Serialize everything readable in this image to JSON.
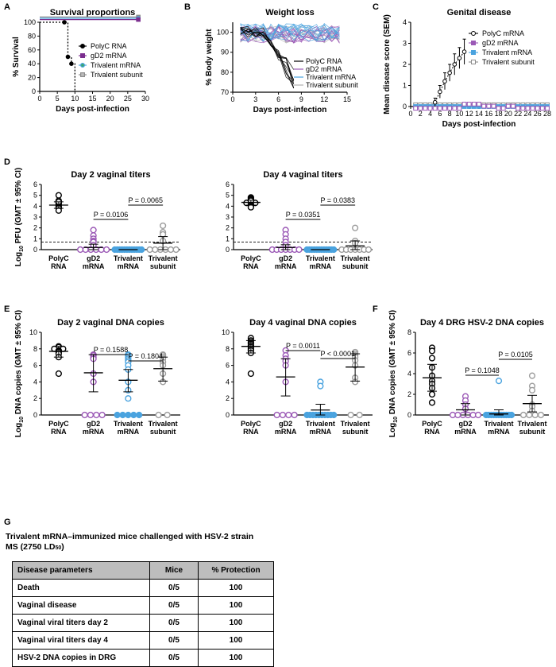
{
  "panel_labels": [
    "A",
    "B",
    "C",
    "D",
    "E",
    "F",
    "G"
  ],
  "chart_data": [
    {
      "id": "A",
      "type": "line",
      "title": "Survival proportions",
      "xlabel": "Days post-infection",
      "ylabel": "% Survival",
      "xlim": [
        0,
        30
      ],
      "ylim": [
        0,
        100
      ],
      "xticks": [
        0,
        5,
        10,
        15,
        20,
        25,
        30
      ],
      "yticks": [
        0,
        20,
        40,
        60,
        80,
        100
      ],
      "series": [
        {
          "name": "PolyC RNA",
          "color": "#000000",
          "marker": "circle",
          "x": [
            0,
            7,
            8,
            9,
            10
          ],
          "y": [
            100,
            100,
            50,
            40,
            0
          ]
        },
        {
          "name": "gD2 mRNA",
          "color": "#7b2d8e",
          "marker": "square",
          "x": [
            0,
            28
          ],
          "y": [
            100,
            100
          ]
        },
        {
          "name": "Trivalent mRNA",
          "color": "#4aa3df",
          "marker": "circle",
          "x": [
            0,
            28
          ],
          "y": [
            100,
            100
          ]
        },
        {
          "name": "Trivalent subunit",
          "color": "#8c8c8c",
          "marker": "square",
          "x": [
            0,
            28
          ],
          "y": [
            100,
            100
          ]
        }
      ]
    },
    {
      "id": "B",
      "type": "line",
      "title": "Weight loss",
      "xlabel": "Days post-infection",
      "ylabel": "% Body weight",
      "xlim": [
        0,
        15
      ],
      "ylim": [
        70,
        105
      ],
      "xticks": [
        0,
        3,
        6,
        9,
        12,
        15
      ],
      "yticks": [
        70,
        80,
        90,
        100
      ],
      "series": [
        {
          "name": "PolyC RNA",
          "color": "#000000"
        },
        {
          "name": "gD2 mRNA",
          "color": "#9b59b6"
        },
        {
          "name": "Trivalent mRNA",
          "color": "#4aa3df"
        },
        {
          "name": "Trivalent subunit",
          "color": "#b0b0b0"
        }
      ]
    },
    {
      "id": "C",
      "type": "line",
      "title": "Genital disease",
      "xlabel": "Days post-infection",
      "ylabel": "Mean disease score (SEM)",
      "xlim": [
        0,
        28
      ],
      "ylim": [
        0,
        4
      ],
      "xticks": [
        0,
        2,
        4,
        6,
        8,
        10,
        12,
        14,
        16,
        18,
        20,
        22,
        24,
        26,
        28
      ],
      "yticks": [
        0,
        1,
        2,
        3,
        4
      ],
      "series": [
        {
          "name": "PolyC mRNA",
          "color": "#000000",
          "x": [
            5,
            6,
            7,
            8,
            9,
            10,
            11
          ],
          "y": [
            0.2,
            0.7,
            1.2,
            1.6,
            2.0,
            2.3,
            2.6
          ],
          "err": [
            0.2,
            0.3,
            0.4,
            0.4,
            0.5,
            0.5,
            0.6
          ]
        },
        {
          "name": "gD2 mRNA",
          "color": "#9b59b6",
          "x": [
            1,
            2,
            3,
            4,
            5,
            6,
            7,
            8,
            9,
            10,
            11,
            12,
            13,
            14,
            15,
            16,
            17,
            18,
            19,
            20,
            21,
            22,
            23,
            24,
            25,
            26,
            27,
            28
          ],
          "y": [
            0,
            0,
            0,
            0,
            0,
            0,
            0,
            0,
            0,
            0,
            0.2,
            0.2,
            0.2,
            0.2,
            0.1,
            0.1,
            0.1,
            0,
            0,
            0.1,
            0.1,
            0,
            0,
            0,
            0,
            0,
            0,
            0
          ]
        },
        {
          "name": "Trivalent mRNA",
          "color": "#4aa3df",
          "x": [
            1,
            2,
            3,
            4,
            5,
            6,
            7,
            8,
            9,
            10,
            11,
            12,
            13,
            14,
            15,
            16,
            17,
            18,
            19,
            20,
            21,
            22,
            23,
            24,
            25,
            26,
            27,
            28
          ],
          "y": [
            0,
            0,
            0,
            0,
            0,
            0,
            0,
            0,
            0,
            0,
            0,
            0,
            0,
            0,
            0,
            0,
            0,
            0,
            0,
            0,
            0,
            0,
            0,
            0,
            0,
            0,
            0,
            0
          ]
        },
        {
          "name": "Trivalent subunit",
          "color": "#8c8c8c",
          "x": [
            1,
            2,
            3,
            4,
            5,
            6,
            7,
            8,
            9,
            10,
            11,
            12,
            13,
            14,
            15,
            16,
            17,
            18,
            19,
            20,
            21,
            22,
            23,
            24,
            25,
            26,
            27,
            28
          ],
          "y": [
            0,
            0,
            0,
            0,
            0,
            0,
            0,
            0,
            0,
            0,
            0,
            0,
            0,
            0,
            0,
            0,
            0,
            0,
            0,
            0,
            0,
            0,
            0,
            0,
            0,
            0,
            0,
            0
          ]
        }
      ]
    },
    {
      "id": "D1",
      "type": "scatter",
      "title": "Day 2 vaginal titers",
      "ylabel_main": "Log",
      "ylabel_sub": "10",
      "ylabel_rest": " PFU (GMT ± 95% CI)",
      "ylim": [
        0,
        6
      ],
      "yticks": [
        0,
        1,
        2,
        3,
        4,
        5,
        6
      ],
      "detection_limit": 0.7,
      "categories": [
        "PolyC RNA",
        "gD2 mRNA",
        "Trivalent mRNA",
        "Trivalent subunit"
      ],
      "cat_lines": [
        [
          "PolyC",
          "RNA"
        ],
        [
          "gD2",
          "mRNA"
        ],
        [
          "Trivalent",
          "mRNA"
        ],
        [
          "Trivalent",
          "subunit"
        ]
      ],
      "colors": [
        "#000000",
        "#9b59b6",
        "#4aa3df",
        "#9c9c9c"
      ],
      "points": [
        [
          5.0,
          4.5,
          4.3,
          4.2,
          4.1,
          4.0,
          3.9,
          3.8,
          3.6,
          4.4
        ],
        [
          1.8,
          1.3,
          1.0,
          0.8,
          0.7,
          0.4,
          0,
          0,
          0,
          0,
          0,
          0
        ],
        [
          0,
          0,
          0,
          0,
          0,
          0,
          0,
          0,
          0,
          0,
          0,
          0
        ],
        [
          2.2,
          1.6,
          1.4,
          0.8,
          0,
          0,
          0,
          0,
          0,
          0
        ]
      ],
      "means": [
        4.1,
        0.2,
        0.0,
        0.6
      ],
      "ci": [
        [
          3.8,
          4.4
        ],
        [
          0,
          0.5
        ],
        [
          0,
          0
        ],
        [
          0,
          1.2
        ]
      ],
      "brackets": [
        {
          "from": 1,
          "to": 2,
          "text": "P = 0.0106"
        },
        {
          "from": 2,
          "to": 3,
          "text": "P = 0.0065"
        }
      ]
    },
    {
      "id": "D2",
      "type": "scatter",
      "title": "Day 4 vaginal titers",
      "ylim": [
        0,
        6
      ],
      "yticks": [
        0,
        1,
        2,
        3,
        4,
        5,
        6
      ],
      "detection_limit": 0.7,
      "categories": [
        "PolyC RNA",
        "gD2 mRNA",
        "Trivalent mRNA",
        "Trivalent subunit"
      ],
      "cat_lines": [
        [
          "PolyC",
          "RNA"
        ],
        [
          "gD2",
          "mRNA"
        ],
        [
          "Trivalent",
          "mRNA"
        ],
        [
          "Trivalent",
          "subunit"
        ]
      ],
      "colors": [
        "#000000",
        "#9b59b6",
        "#4aa3df",
        "#9c9c9c"
      ],
      "points": [
        [
          4.8,
          4.7,
          4.6,
          4.4,
          4.3,
          4.3,
          4.2,
          4.0,
          3.9,
          4.5
        ],
        [
          1.8,
          1.4,
          1.0,
          0.7,
          0.4,
          0,
          0,
          0,
          0,
          0,
          0,
          0
        ],
        [
          0,
          0,
          0,
          0,
          0,
          0,
          0,
          0,
          0,
          0,
          0,
          0
        ],
        [
          2.0,
          0.8,
          0.6,
          0,
          0,
          0,
          0,
          0,
          0,
          0
        ]
      ],
      "means": [
        4.35,
        0.2,
        0.0,
        0.35
      ],
      "ci": [
        [
          4.1,
          4.55
        ],
        [
          0,
          0.45
        ],
        [
          0,
          0
        ],
        [
          0,
          0.8
        ]
      ],
      "brackets": [
        {
          "from": 1,
          "to": 2,
          "text": "P = 0.0351"
        },
        {
          "from": 2,
          "to": 3,
          "text": "P = 0.0383"
        }
      ]
    },
    {
      "id": "E1",
      "type": "scatter",
      "title": "Day 2 vaginal DNA copies",
      "ylabel_main": "Log",
      "ylabel_sub": "10",
      "ylabel_rest": " DNA copies (GMT ± 95% CI)",
      "ylim": [
        0,
        10
      ],
      "yticks": [
        0,
        2,
        4,
        6,
        8,
        10
      ],
      "categories": [
        "PolyC RNA",
        "gD2 mRNA",
        "Trivalent mRNA",
        "Trivalent subunit"
      ],
      "cat_lines": [
        [
          "PolyC",
          "RNA"
        ],
        [
          "gD2",
          "mRNA"
        ],
        [
          "Trivalent",
          "mRNA"
        ],
        [
          "Trivalent",
          "subunit"
        ]
      ],
      "colors": [
        "#000000",
        "#9b59b6",
        "#4aa3df",
        "#9c9c9c"
      ],
      "points": [
        [
          8.3,
          8.2,
          8.0,
          8.0,
          7.8,
          7.7,
          7.6,
          7.4,
          7.0,
          5.0
        ],
        [
          7.3,
          7.2,
          7.0,
          6.8,
          5.0,
          4.0,
          0,
          0,
          0,
          0
        ],
        [
          7.3,
          7.2,
          7.0,
          6.8,
          6.6,
          6.4,
          6.0,
          5.5,
          4.0,
          3.0,
          2.0,
          0,
          0,
          0,
          0,
          0
        ],
        [
          7.3,
          7.2,
          7.0,
          6.8,
          6.4,
          6.0,
          5.0,
          4.0,
          0,
          0
        ]
      ],
      "means": [
        7.7,
        5.1,
        4.2,
        5.6
      ],
      "ci": [
        [
          7.0,
          8.3
        ],
        [
          2.8,
          7.3
        ],
        [
          2.8,
          5.5
        ],
        [
          4.1,
          7.0
        ]
      ],
      "brackets": [
        {
          "from": 1,
          "to": 2,
          "text": "P = 0.1588"
        },
        {
          "from": 2,
          "to": 3,
          "text": "P = 0.1804"
        }
      ]
    },
    {
      "id": "E2",
      "type": "scatter",
      "title": "Day 4 vaginal DNA copies",
      "ylim": [
        0,
        10
      ],
      "yticks": [
        0,
        2,
        4,
        6,
        8,
        10
      ],
      "categories": [
        "PolyC RNA",
        "gD2 mRNA",
        "Trivalent mRNA",
        "Trivalent subunit"
      ],
      "cat_lines": [
        [
          "PolyC",
          "RNA"
        ],
        [
          "gD2",
          "mRNA"
        ],
        [
          "Trivalent",
          "mRNA"
        ],
        [
          "Trivalent",
          "subunit"
        ]
      ],
      "colors": [
        "#000000",
        "#9b59b6",
        "#4aa3df",
        "#9c9c9c"
      ],
      "points": [
        [
          9.3,
          9.0,
          8.8,
          8.6,
          8.4,
          8.2,
          8.0,
          7.8,
          7.5,
          5.0
        ],
        [
          7.8,
          7.2,
          6.8,
          6.5,
          6.0,
          4.0,
          0,
          0,
          0,
          0
        ],
        [
          4.0,
          3.5,
          0,
          0,
          0,
          0,
          0,
          0,
          0,
          0,
          0,
          0
        ],
        [
          7.6,
          7.4,
          7.2,
          7.0,
          6.6,
          6.0,
          4.5,
          4.0,
          0,
          0
        ]
      ],
      "means": [
        8.3,
        4.6,
        0.6,
        5.8
      ],
      "ci": [
        [
          7.5,
          9.0
        ],
        [
          2.3,
          6.8
        ],
        [
          0,
          1.3
        ],
        [
          4.1,
          7.4
        ]
      ],
      "brackets": [
        {
          "from": 1,
          "to": 2,
          "text": "P = 0.0011"
        },
        {
          "from": 2,
          "to": 3,
          "text": "P < 0.0001"
        }
      ]
    },
    {
      "id": "F",
      "type": "scatter",
      "title": "Day 4 DRG HSV-2 DNA copies",
      "ylabel_main": "Log",
      "ylabel_sub": "10",
      "ylabel_rest": " DNA copies (GMT ± 95% CI)",
      "ylim": [
        0,
        8
      ],
      "yticks": [
        0,
        2,
        4,
        6,
        8
      ],
      "categories": [
        "PolyC RNA",
        "gD2 mRNA",
        "Trivalent mRNA",
        "Trivalent subunit"
      ],
      "cat_lines": [
        [
          "PolyC",
          "RNA"
        ],
        [
          "gD2",
          "mRNA"
        ],
        [
          "Trivalent",
          "mRNA"
        ],
        [
          "Trivalent",
          "subunit"
        ]
      ],
      "colors": [
        "#000000",
        "#9b59b6",
        "#4aa3df",
        "#9c9c9c"
      ],
      "points": [
        [
          6.5,
          6.2,
          5.5,
          4.6,
          3.8,
          3.3,
          3.0,
          2.6,
          2.0,
          1.2
        ],
        [
          1.8,
          1.4,
          1.0,
          0.6,
          0,
          0,
          0,
          0,
          0,
          0
        ],
        [
          3.3,
          0,
          0,
          0,
          0,
          0,
          0,
          0,
          0,
          0,
          0,
          0
        ],
        [
          3.8,
          2.8,
          2.4,
          1.0,
          0.8,
          0.4,
          0,
          0,
          0,
          0
        ]
      ],
      "means": [
        3.6,
        0.5,
        0.1,
        1.1
      ],
      "ci": [
        [
          2.3,
          4.9
        ],
        [
          0,
          1.1
        ],
        [
          0,
          0.5
        ],
        [
          0.3,
          1.9
        ]
      ],
      "brackets": [
        {
          "from": 1,
          "to": 2,
          "text": "P = 0.1048"
        },
        {
          "from": 2,
          "to": 3,
          "text": "P = 0.0105"
        }
      ]
    },
    {
      "id": "G",
      "type": "table",
      "title_main": "Trivalent mRNA–immunized mice challenged with HSV-2 strain MS (2750 LD",
      "title_sub": "50",
      "title_end": ")",
      "columns": [
        "Disease parameters",
        "Mice",
        "% Protection"
      ],
      "rows": [
        [
          "Death",
          "0/5",
          "100"
        ],
        [
          "Vaginal disease",
          "0/5",
          "100"
        ],
        [
          "Vaginal viral titers day 2",
          "0/5",
          "100"
        ],
        [
          "Vaginal viral titers day 4",
          "0/5",
          "100"
        ],
        [
          "HSV-2 DNA copies in DRG",
          "0/5",
          "100"
        ]
      ]
    }
  ]
}
